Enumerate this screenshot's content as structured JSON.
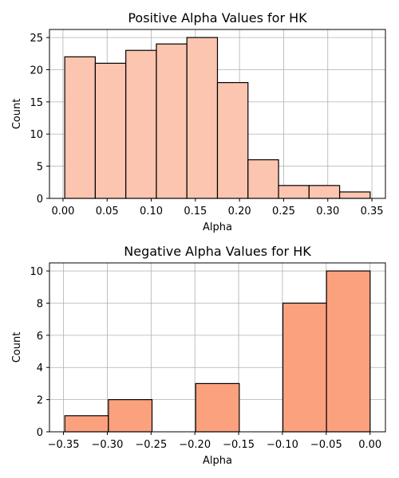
{
  "chart_data": [
    {
      "type": "bar",
      "title": "Positive Alpha Values for HK",
      "xlabel": "Alpha",
      "ylabel": "Count",
      "bins": [
        {
          "x0": 0.002,
          "x1": 0.0366,
          "count": 22
        },
        {
          "x0": 0.0366,
          "x1": 0.0712,
          "count": 21
        },
        {
          "x0": 0.0712,
          "x1": 0.1058,
          "count": 23
        },
        {
          "x0": 0.1058,
          "x1": 0.1404,
          "count": 24
        },
        {
          "x0": 0.1404,
          "x1": 0.175,
          "count": 25
        },
        {
          "x0": 0.175,
          "x1": 0.2096,
          "count": 18
        },
        {
          "x0": 0.2096,
          "x1": 0.2442,
          "count": 6
        },
        {
          "x0": 0.2442,
          "x1": 0.2788,
          "count": 2
        },
        {
          "x0": 0.2788,
          "x1": 0.3134,
          "count": 2
        },
        {
          "x0": 0.3134,
          "x1": 0.348,
          "count": 1
        }
      ],
      "xlim": [
        -0.0153,
        0.3653
      ],
      "ylim": [
        0,
        26.25
      ],
      "xticks": [
        "0.00",
        "0.05",
        "0.10",
        "0.15",
        "0.20",
        "0.25",
        "0.30",
        "0.35"
      ],
      "xtick_values": [
        0,
        0.05,
        0.1,
        0.15,
        0.2,
        0.25,
        0.3,
        0.35
      ],
      "yticks": [
        "0",
        "5",
        "10",
        "15",
        "20",
        "25"
      ],
      "ytick_values": [
        0,
        5,
        10,
        15,
        20,
        25
      ],
      "grid": true,
      "bar_color": "#fcc5b0",
      "edge_color": "#000000"
    },
    {
      "type": "bar",
      "title": "Negative Alpha Values for HK",
      "xlabel": "Alpha",
      "ylabel": "Count",
      "bins": [
        {
          "x0": -0.3485,
          "x1": -0.2987,
          "count": 1
        },
        {
          "x0": -0.2987,
          "x1": -0.2489,
          "count": 2
        },
        {
          "x0": -0.2489,
          "x1": -0.1991,
          "count": 0
        },
        {
          "x0": -0.1991,
          "x1": -0.1493,
          "count": 3
        },
        {
          "x0": -0.1493,
          "x1": -0.0995,
          "count": 0
        },
        {
          "x0": -0.0995,
          "x1": -0.0497,
          "count": 8
        },
        {
          "x0": -0.0497,
          "x1": 0.0001,
          "count": 10
        }
      ],
      "xlim": [
        -0.366,
        0.0176
      ],
      "ylim": [
        0,
        10.5
      ],
      "xticks": [
        "−0.35",
        "−0.30",
        "−0.25",
        "−0.20",
        "−0.15",
        "−0.10",
        "−0.05",
        "0.00"
      ],
      "xtick_values": [
        -0.35,
        -0.3,
        -0.25,
        -0.2,
        -0.15,
        -0.1,
        -0.05,
        0
      ],
      "yticks": [
        "0",
        "2",
        "4",
        "6",
        "8",
        "10"
      ],
      "ytick_values": [
        0,
        2,
        4,
        6,
        8,
        10
      ],
      "grid": true,
      "bar_color": "#fca17e",
      "edge_color": "#000000"
    }
  ]
}
